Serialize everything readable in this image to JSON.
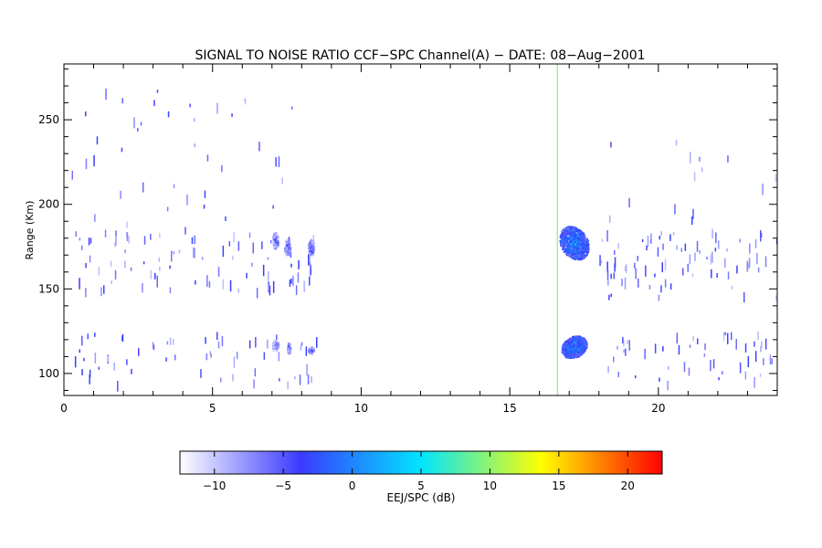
{
  "chart_data": {
    "type": "heatmap",
    "title": "SIGNAL TO NOISE RATIO CCF−SPC Channel(A) − DATE: 08−Aug−2001",
    "xlabel": "",
    "ylabel": "Range (Km)",
    "xlim": [
      0,
      24
    ],
    "ylim": [
      87,
      283
    ],
    "x_ticks": [
      "0",
      "5",
      "10",
      "15",
      "20"
    ],
    "x_tick_values": [
      0,
      5,
      10,
      15,
      20
    ],
    "y_ticks": [
      "100",
      "150",
      "200",
      "250"
    ],
    "y_tick_values": [
      100,
      150,
      200,
      250
    ],
    "grid": false,
    "marker_line": {
      "x": 16.6,
      "color": "#7fe07f"
    },
    "colorbar": {
      "label": "EEJ/SPC (dB)",
      "range": [
        -12.5,
        22.5
      ],
      "ticks": [
        "−10",
        "−5",
        "0",
        "5",
        "10",
        "15",
        "20"
      ],
      "tick_values": [
        -10,
        -5,
        0,
        5,
        10,
        15,
        20
      ],
      "colors": [
        "#ffffff",
        "#3a3aff",
        "#00e5ff",
        "#ffff00",
        "#ff0000"
      ]
    },
    "echo_regions": [
      {
        "name": "upper-echo-day",
        "x_range": [
          16.7,
          17.6
        ],
        "y_range": [
          167,
          188
        ],
        "snr_db": -1
      },
      {
        "name": "lower-echo-day",
        "x_range": [
          16.7,
          17.6
        ],
        "y_range": [
          110,
          122
        ],
        "snr_db": -1
      },
      {
        "name": "upper-echo-evening-1",
        "x_range": [
          7.0,
          7.2
        ],
        "y_range": [
          174,
          184
        ],
        "snr_db": -6
      },
      {
        "name": "upper-echo-evening-2",
        "x_range": [
          7.4,
          7.6
        ],
        "y_range": [
          170,
          180
        ],
        "snr_db": -6
      },
      {
        "name": "upper-echo-evening-3",
        "x_range": [
          8.2,
          8.4
        ],
        "y_range": [
          170,
          180
        ],
        "snr_db": -6
      },
      {
        "name": "lower-echo-evening-1",
        "x_range": [
          7.0,
          7.2
        ],
        "y_range": [
          114,
          120
        ],
        "snr_db": -6
      },
      {
        "name": "lower-echo-evening-2",
        "x_range": [
          7.5,
          7.6
        ],
        "y_range": [
          112,
          118
        ],
        "snr_db": -6
      },
      {
        "name": "lower-echo-evening-3",
        "x_range": [
          8.2,
          8.4
        ],
        "y_range": [
          112,
          116
        ],
        "snr_db": -6
      }
    ]
  }
}
